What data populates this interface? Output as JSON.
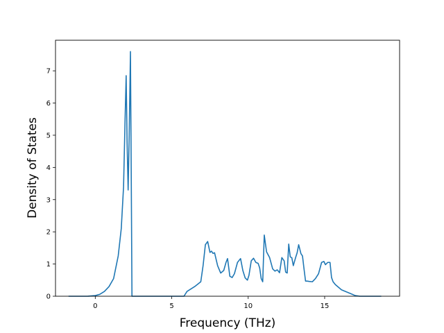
{
  "chart_data": {
    "type": "line",
    "title": "",
    "xlabel": "Frequency (THz)",
    "ylabel": "Density of States",
    "xlim": [
      -2.6,
      19.9
    ],
    "ylim": [
      0,
      7.95
    ],
    "xticks": [
      0,
      5,
      10,
      15
    ],
    "yticks": [
      0,
      1,
      2,
      3,
      4,
      5,
      6,
      7
    ],
    "xtick_labels": [
      "0",
      "5",
      "10",
      "15"
    ],
    "ytick_labels": [
      "0",
      "1",
      "2",
      "3",
      "4",
      "5",
      "6",
      "7"
    ],
    "grid": false,
    "legend": "none",
    "series": [
      {
        "color": "#1f77b4",
        "x": [
          -1.75,
          -0.5,
          0.0,
          0.3,
          0.6,
          0.9,
          1.2,
          1.5,
          1.7,
          1.85,
          1.95,
          2.02,
          2.08,
          2.15,
          2.22,
          2.3,
          2.35,
          2.4,
          2.45,
          5.8,
          6.0,
          6.5,
          6.9,
          7.05,
          7.2,
          7.35,
          7.5,
          7.6,
          7.7,
          7.8,
          8.0,
          8.2,
          8.4,
          8.55,
          8.65,
          8.8,
          8.95,
          9.1,
          9.3,
          9.5,
          9.65,
          9.8,
          9.95,
          10.05,
          10.2,
          10.35,
          10.5,
          10.65,
          10.75,
          10.85,
          10.95,
          11.05,
          11.2,
          11.4,
          11.6,
          11.75,
          11.9,
          12.05,
          12.2,
          12.35,
          12.45,
          12.55,
          12.65,
          12.75,
          12.85,
          12.95,
          13.1,
          13.2,
          13.3,
          13.45,
          13.55,
          13.65,
          13.75,
          13.85,
          14.0,
          14.2,
          14.4,
          14.6,
          14.8,
          14.95,
          15.05,
          15.2,
          15.35,
          15.45,
          15.55,
          15.7,
          15.9,
          16.1,
          16.4,
          16.7,
          17.0,
          17.3,
          18.7
        ],
        "y": [
          0,
          0,
          0.02,
          0.06,
          0.15,
          0.3,
          0.55,
          1.25,
          2.1,
          3.4,
          5.5,
          6.85,
          4.8,
          3.3,
          5.0,
          7.6,
          4.0,
          0,
          0,
          0,
          0.15,
          0.3,
          0.45,
          0.95,
          1.6,
          1.7,
          1.36,
          1.4,
          1.33,
          1.35,
          0.95,
          0.72,
          0.8,
          1.05,
          1.17,
          0.62,
          0.58,
          0.7,
          1.05,
          1.17,
          0.8,
          0.57,
          0.5,
          0.65,
          1.1,
          1.18,
          1.05,
          1.02,
          0.88,
          0.55,
          0.45,
          1.9,
          1.38,
          1.2,
          0.85,
          0.78,
          0.82,
          0.73,
          1.2,
          1.1,
          0.75,
          0.72,
          1.62,
          1.22,
          1.2,
          0.95,
          1.2,
          1.35,
          1.6,
          1.32,
          1.25,
          0.85,
          0.47,
          0.47,
          0.46,
          0.45,
          0.55,
          0.7,
          1.05,
          1.08,
          0.98,
          1.05,
          1.05,
          0.58,
          0.45,
          0.36,
          0.28,
          0.2,
          0.14,
          0.08,
          0.02,
          0,
          0
        ]
      }
    ]
  }
}
